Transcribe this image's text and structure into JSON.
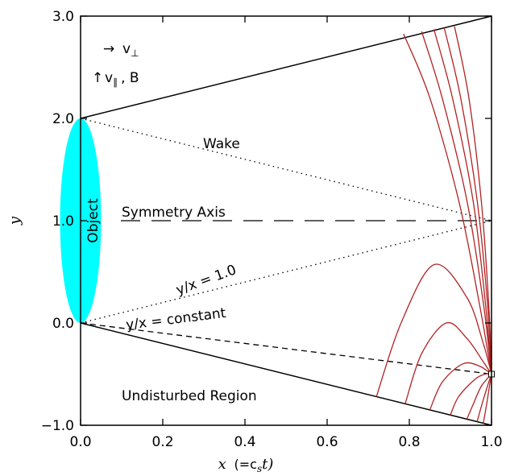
{
  "chart_data": {
    "type": "line",
    "xlabel_var": "x",
    "xlabel_paren": "(=c",
    "xlabel_sub": "s",
    "xlabel_t": "t)",
    "ylabel": "y",
    "xlim": [
      0.0,
      1.0
    ],
    "ylim": [
      -1.0,
      3.0
    ],
    "xticks": [
      {
        "v": 0.0,
        "label": "0.0"
      },
      {
        "v": 0.2,
        "label": "0.2"
      },
      {
        "v": 0.4,
        "label": "0.4"
      },
      {
        "v": 0.6,
        "label": "0.6"
      },
      {
        "v": 0.8,
        "label": "0.8"
      },
      {
        "v": 1.0,
        "label": "1.0"
      }
    ],
    "yticks": [
      {
        "v": -1.0,
        "label": "−1.0"
      },
      {
        "v": 0.0,
        "label": "0.0"
      },
      {
        "v": 1.0,
        "label": "1.0"
      },
      {
        "v": 2.0,
        "label": "2.0"
      },
      {
        "v": 3.0,
        "label": "3.0"
      }
    ],
    "annotations": {
      "v_perp": "v",
      "perp_sym": "⊥",
      "v_par": "v",
      "par_sym": "∥",
      "comma_b": ",  B",
      "wake": "Wake",
      "symmetry_axis": "Symmetry Axis",
      "object": "Object",
      "ratio_one": "y/x = 1.0",
      "ratio_const": "y/x = constant",
      "undisturbed": "Undisturbed Region"
    },
    "boundary_lines": [
      {
        "x": [
          0.0,
          1.0
        ],
        "y": [
          2.0,
          3.0
        ]
      },
      {
        "x": [
          0.0,
          1.0
        ],
        "y": [
          0.0,
          -1.0
        ]
      }
    ],
    "wake_lines": [
      {
        "x": [
          0.0,
          1.0
        ],
        "y": [
          2.0,
          1.0
        ]
      },
      {
        "x": [
          0.0,
          1.0
        ],
        "y": [
          0.0,
          1.0
        ]
      }
    ],
    "symmetry_axis": {
      "x": [
        0.0,
        1.0
      ],
      "y": [
        1.0,
        1.0
      ]
    },
    "constant_ratio_line": {
      "x": [
        0.0,
        1.0
      ],
      "y": [
        0.0,
        -0.5
      ]
    },
    "object_ellipse": {
      "cx": 0.0,
      "cy": 1.0,
      "rx": 0.05,
      "ry": 1.0
    },
    "marker_point": {
      "x": 1.0,
      "y": -0.5
    },
    "field_lines": [
      {
        "x": [
          0.786,
          0.85,
          0.92,
          0.97,
          1.0
        ],
        "y": [
          2.826,
          2.2,
          1.2,
          0.2,
          -0.5
        ]
      },
      {
        "x": [
          0.83,
          0.88,
          0.94,
          0.98,
          1.0
        ],
        "y": [
          2.85,
          2.2,
          1.2,
          0.2,
          -0.5
        ]
      },
      {
        "x": [
          0.86,
          0.905,
          0.955,
          0.985,
          1.0
        ],
        "y": [
          2.87,
          2.2,
          1.2,
          0.2,
          -0.5
        ]
      },
      {
        "x": [
          0.885,
          0.925,
          0.965,
          0.99,
          1.0
        ],
        "y": [
          2.885,
          2.2,
          1.2,
          0.2,
          -0.5
        ]
      },
      {
        "x": [
          0.91,
          0.945,
          0.975,
          0.993,
          1.0
        ],
        "y": [
          2.9,
          2.2,
          1.2,
          0.2,
          -0.5
        ]
      },
      {
        "x": [
          0.72,
          0.78,
          0.86,
          0.94,
          0.98,
          1.0
        ],
        "y": [
          -0.72,
          0.0,
          0.57,
          0.25,
          -0.2,
          -0.5
        ]
      },
      {
        "x": [
          0.79,
          0.83,
          0.89,
          0.94,
          0.98,
          1.0
        ],
        "y": [
          -0.79,
          -0.3,
          -0.0,
          -0.15,
          -0.38,
          -0.5
        ]
      },
      {
        "x": [
          0.85,
          0.88,
          0.93,
          0.97,
          1.0
        ],
        "y": [
          -0.85,
          -0.58,
          -0.4,
          -0.42,
          -0.5
        ]
      },
      {
        "x": [
          0.9,
          0.92,
          0.96,
          0.985,
          1.0
        ],
        "y": [
          -0.9,
          -0.72,
          -0.55,
          -0.5,
          -0.5
        ]
      },
      {
        "x": [
          0.94,
          0.955,
          0.975,
          1.0
        ],
        "y": [
          -0.94,
          -0.8,
          -0.62,
          -0.5
        ]
      },
      {
        "x": [
          0.965,
          0.975,
          0.99,
          1.0
        ],
        "y": [
          -0.965,
          -0.82,
          -0.62,
          -0.5
        ]
      },
      {
        "x": [
          0.98,
          0.988,
          0.995,
          1.0
        ],
        "y": [
          -0.98,
          -0.8,
          -0.62,
          -0.5
        ]
      }
    ],
    "colors": {
      "field_line": "#b22222",
      "object_fill": "#00ffff",
      "axes": "#000000"
    },
    "grid": false
  }
}
